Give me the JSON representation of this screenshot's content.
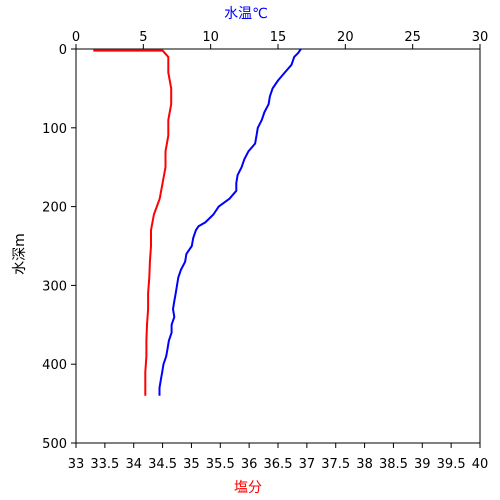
{
  "chart_data": {
    "type": "line",
    "top_axis": {
      "label": "水温℃",
      "range": [
        0,
        30
      ],
      "ticks": [
        0,
        5,
        10,
        15,
        20,
        25,
        30
      ],
      "color": "#0000ff"
    },
    "bottom_axis": {
      "label": "塩分",
      "range": [
        33,
        40
      ],
      "ticks": [
        "33",
        "33.5",
        "34",
        "34.5",
        "35",
        "35.5",
        "36",
        "36.5",
        "37",
        "37.5",
        "38",
        "38.5",
        "39",
        "39.5",
        "40"
      ],
      "color": "#ff0000"
    },
    "y_axis": {
      "label": "水深m",
      "range": [
        0,
        500
      ],
      "inverted": true,
      "ticks": [
        0,
        100,
        200,
        300,
        400,
        500
      ]
    },
    "grid": false,
    "series": [
      {
        "axis": "top",
        "color": "#0000ff",
        "points": [
          [
            16.7,
            0
          ],
          [
            16.5,
            5
          ],
          [
            16.2,
            10
          ],
          [
            16.0,
            20
          ],
          [
            15.5,
            30
          ],
          [
            15.0,
            40
          ],
          [
            14.6,
            50
          ],
          [
            14.4,
            60
          ],
          [
            14.3,
            70
          ],
          [
            14.0,
            80
          ],
          [
            13.8,
            90
          ],
          [
            13.5,
            100
          ],
          [
            13.4,
            110
          ],
          [
            13.3,
            120
          ],
          [
            12.8,
            130
          ],
          [
            12.5,
            140
          ],
          [
            12.3,
            150
          ],
          [
            12.0,
            160
          ],
          [
            11.9,
            170
          ],
          [
            11.9,
            180
          ],
          [
            11.4,
            190
          ],
          [
            10.6,
            200
          ],
          [
            10.2,
            210
          ],
          [
            9.6,
            220
          ],
          [
            9.1,
            225
          ],
          [
            8.9,
            230
          ],
          [
            8.7,
            240
          ],
          [
            8.6,
            250
          ],
          [
            8.2,
            260
          ],
          [
            8.1,
            270
          ],
          [
            7.8,
            280
          ],
          [
            7.6,
            290
          ],
          [
            7.5,
            300
          ],
          [
            7.4,
            310
          ],
          [
            7.3,
            320
          ],
          [
            7.2,
            330
          ],
          [
            7.3,
            340
          ],
          [
            7.1,
            350
          ],
          [
            7.1,
            360
          ],
          [
            6.9,
            370
          ],
          [
            6.8,
            380
          ],
          [
            6.7,
            390
          ],
          [
            6.5,
            400
          ],
          [
            6.4,
            410
          ],
          [
            6.3,
            420
          ],
          [
            6.2,
            430
          ],
          [
            6.2,
            440
          ]
        ]
      },
      {
        "axis": "bottom",
        "color": "#ff0000",
        "points": [
          [
            33.3,
            2
          ],
          [
            34.5,
            2
          ],
          [
            34.6,
            10
          ],
          [
            34.6,
            30
          ],
          [
            34.65,
            50
          ],
          [
            34.65,
            70
          ],
          [
            34.6,
            90
          ],
          [
            34.6,
            110
          ],
          [
            34.55,
            130
          ],
          [
            34.55,
            150
          ],
          [
            34.5,
            170
          ],
          [
            34.45,
            190
          ],
          [
            34.4,
            200
          ],
          [
            34.35,
            210
          ],
          [
            34.3,
            230
          ],
          [
            34.3,
            250
          ],
          [
            34.28,
            270
          ],
          [
            34.27,
            290
          ],
          [
            34.25,
            310
          ],
          [
            34.25,
            330
          ],
          [
            34.23,
            350
          ],
          [
            34.22,
            370
          ],
          [
            34.22,
            390
          ],
          [
            34.2,
            410
          ],
          [
            34.2,
            430
          ],
          [
            34.2,
            440
          ]
        ]
      }
    ]
  }
}
